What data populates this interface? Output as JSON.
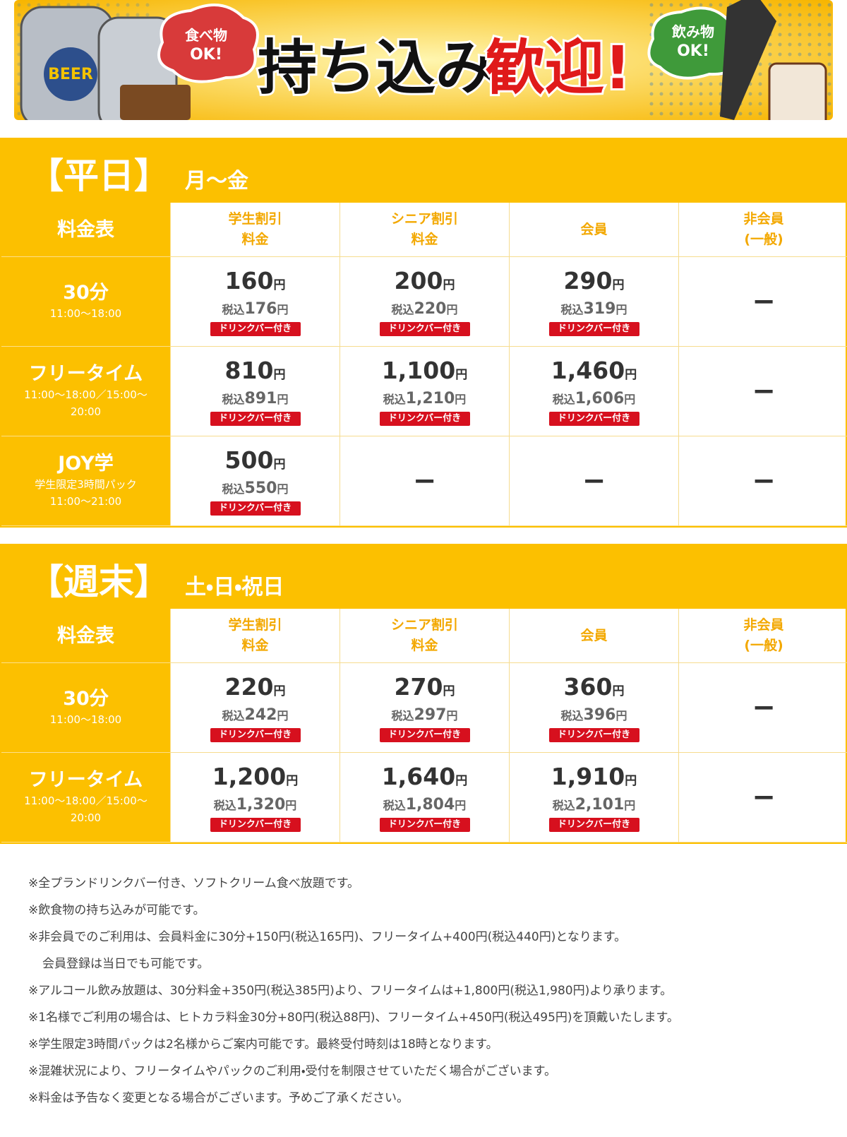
{
  "banner": {
    "food": [
      "食べ物",
      "OK!"
    ],
    "title_black": "持ち込み",
    "title_red": "歓迎!",
    "drink": [
      "飲み物",
      "OK!"
    ],
    "can_label": "BEER"
  },
  "sections": [
    {
      "title": "【平日】",
      "days": "月〜金",
      "header": [
        [
          "料金表"
        ],
        [
          "学生割引",
          "料金"
        ],
        [
          "シニア割引",
          "料金"
        ],
        [
          "会員"
        ],
        [
          "非会員",
          "(一般)"
        ]
      ],
      "rows": [
        {
          "name": "30分",
          "sub": [
            "11:00〜18:00"
          ],
          "cells": [
            {
              "price": "160",
              "unit": "円",
              "tax_label": "税込",
              "tax": "176",
              "tax_unit": "円",
              "badge": "ドリンクバー付き"
            },
            {
              "price": "200",
              "unit": "円",
              "tax_label": "税込",
              "tax": "220",
              "tax_unit": "円",
              "badge": "ドリンクバー付き"
            },
            {
              "price": "290",
              "unit": "円",
              "tax_label": "税込",
              "tax": "319",
              "tax_unit": "円",
              "badge": "ドリンクバー付き"
            },
            {
              "dash": "−"
            }
          ]
        },
        {
          "name": "フリータイム",
          "sub": [
            "11:00〜18:00／15:00〜",
            "20:00"
          ],
          "cells": [
            {
              "price": "810",
              "unit": "円",
              "tax_label": "税込",
              "tax": "891",
              "tax_unit": "円",
              "badge": "ドリンクバー付き"
            },
            {
              "price": "1,100",
              "unit": "円",
              "tax_label": "税込",
              "tax": "1,210",
              "tax_unit": "円",
              "badge": "ドリンクバー付き"
            },
            {
              "price": "1,460",
              "unit": "円",
              "tax_label": "税込",
              "tax": "1,606",
              "tax_unit": "円",
              "badge": "ドリンクバー付き"
            },
            {
              "dash": "−"
            }
          ]
        },
        {
          "name": "JOY学",
          "sub": [
            "学生限定3時間パック",
            "11:00〜21:00"
          ],
          "cells": [
            {
              "price": "500",
              "unit": "円",
              "tax_label": "税込",
              "tax": "550",
              "tax_unit": "円",
              "badge": "ドリンクバー付き"
            },
            {
              "dash": "−"
            },
            {
              "dash": "−"
            },
            {
              "dash": "−"
            }
          ]
        }
      ]
    },
    {
      "title": "【週末】",
      "days": "土・日・祝日",
      "header": [
        [
          "料金表"
        ],
        [
          "学生割引",
          "料金"
        ],
        [
          "シニア割引",
          "料金"
        ],
        [
          "会員"
        ],
        [
          "非会員",
          "(一般)"
        ]
      ],
      "rows": [
        {
          "name": "30分",
          "sub": [
            "11:00〜18:00"
          ],
          "cells": [
            {
              "price": "220",
              "unit": "円",
              "tax_label": "税込",
              "tax": "242",
              "tax_unit": "円",
              "badge": "ドリンクバー付き"
            },
            {
              "price": "270",
              "unit": "円",
              "tax_label": "税込",
              "tax": "297",
              "tax_unit": "円",
              "badge": "ドリンクバー付き"
            },
            {
              "price": "360",
              "unit": "円",
              "tax_label": "税込",
              "tax": "396",
              "tax_unit": "円",
              "badge": "ドリンクバー付き"
            },
            {
              "dash": "−"
            }
          ]
        },
        {
          "name": "フリータイム",
          "sub": [
            "11:00〜18:00／15:00〜",
            "20:00"
          ],
          "cells": [
            {
              "price": "1,200",
              "unit": "円",
              "tax_label": "税込",
              "tax": "1,320",
              "tax_unit": "円",
              "badge": "ドリンクバー付き"
            },
            {
              "price": "1,640",
              "unit": "円",
              "tax_label": "税込",
              "tax": "1,804",
              "tax_unit": "円",
              "badge": "ドリンクバー付き"
            },
            {
              "price": "1,910",
              "unit": "円",
              "tax_label": "税込",
              "tax": "2,101",
              "tax_unit": "円",
              "badge": "ドリンクバー付き"
            },
            {
              "dash": "−"
            }
          ]
        }
      ]
    }
  ],
  "notes": [
    {
      "text": "※全プランドリンクバー付き、ソフトクリーム食べ放題です。"
    },
    {
      "text": "※飲食物の持ち込みが可能です。"
    },
    {
      "text": "※非会員でのご利用は、会員料金に30分+150円(税込165円)、フリータイム+400円(税込440円)となります。"
    },
    {
      "text": "会員登録は当日でも可能です。",
      "indent": true
    },
    {
      "text": "※アルコール飲み放題は、30分料金+350円(税込385円)より、フリータイムは+1,800円(税込1,980円)より承ります。"
    },
    {
      "text": "※1名様でご利用の場合は、ヒトカラ料金30分+80円(税込88円)、フリータイム+450円(税込495円)を頂戴いたします。"
    },
    {
      "text": "※学生限定3時間パックは2名様からご案内可能です。最終受付時刻は18時となります。"
    },
    {
      "text": "※混雑状況により、フリータイムやパックのご利用・受付を制限させていただく場合がございます。"
    },
    {
      "text": "※料金は予告なく変更となる場合がございます。予めご了承ください。"
    }
  ]
}
